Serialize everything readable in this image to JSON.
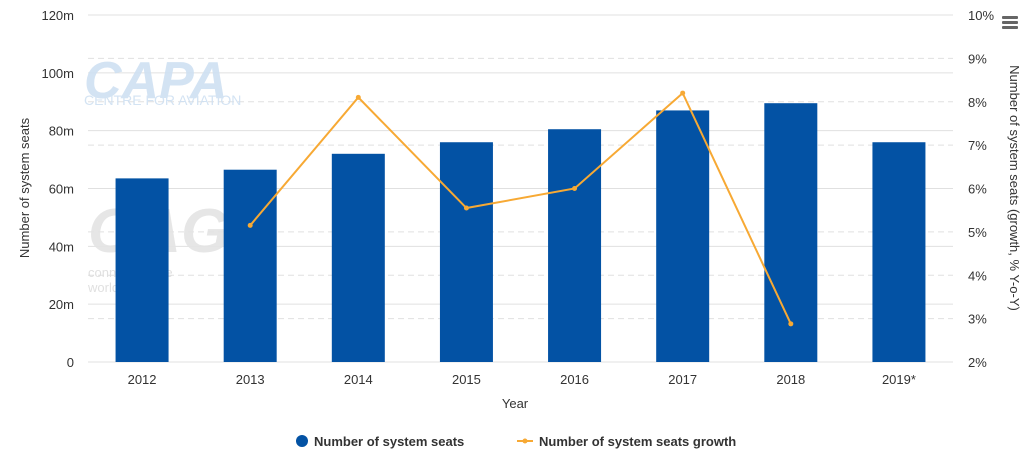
{
  "watermarks": {
    "capa_title": "CAPA",
    "capa_subtitle": "CENTRE FOR AVIATION",
    "oag_title": "OAG",
    "oag_subtitle_1": "connecting the",
    "oag_subtitle_2": "world of travel"
  },
  "colors": {
    "bar": "#0352a4",
    "line": "#f7a934",
    "grid": "#e0e0e0",
    "text": "#333333"
  },
  "menu_icon": "hamburger-menu-icon",
  "chart_data": {
    "type": "bar+line",
    "categories": [
      "2012",
      "2013",
      "2014",
      "2015",
      "2016",
      "2017",
      "2018",
      "2019*"
    ],
    "series": [
      {
        "name": "Number of system seats",
        "type": "bar",
        "axis": "left",
        "values": [
          63.5,
          66.5,
          72,
          76,
          80.5,
          87,
          89.5,
          76
        ]
      },
      {
        "name": "Number of system seats growth",
        "type": "line",
        "axis": "right",
        "values": [
          null,
          5.15,
          8.1,
          5.55,
          6.0,
          8.2,
          2.88,
          null
        ]
      }
    ],
    "xlabel": "Year",
    "ylabel": "Number of system seats",
    "y2label": "Number of system seats (growth, % Y-o-Y)",
    "ylim": [
      0,
      120
    ],
    "y2lim": [
      2,
      10
    ],
    "yticks": [
      "0",
      "20m",
      "40m",
      "60m",
      "80m",
      "100m",
      "120m"
    ],
    "y2ticks": [
      "2%",
      "3%",
      "4%",
      "5%",
      "6%",
      "7%",
      "8%",
      "9%",
      "10%"
    ],
    "grid": true,
    "legend": "bottom-center"
  }
}
